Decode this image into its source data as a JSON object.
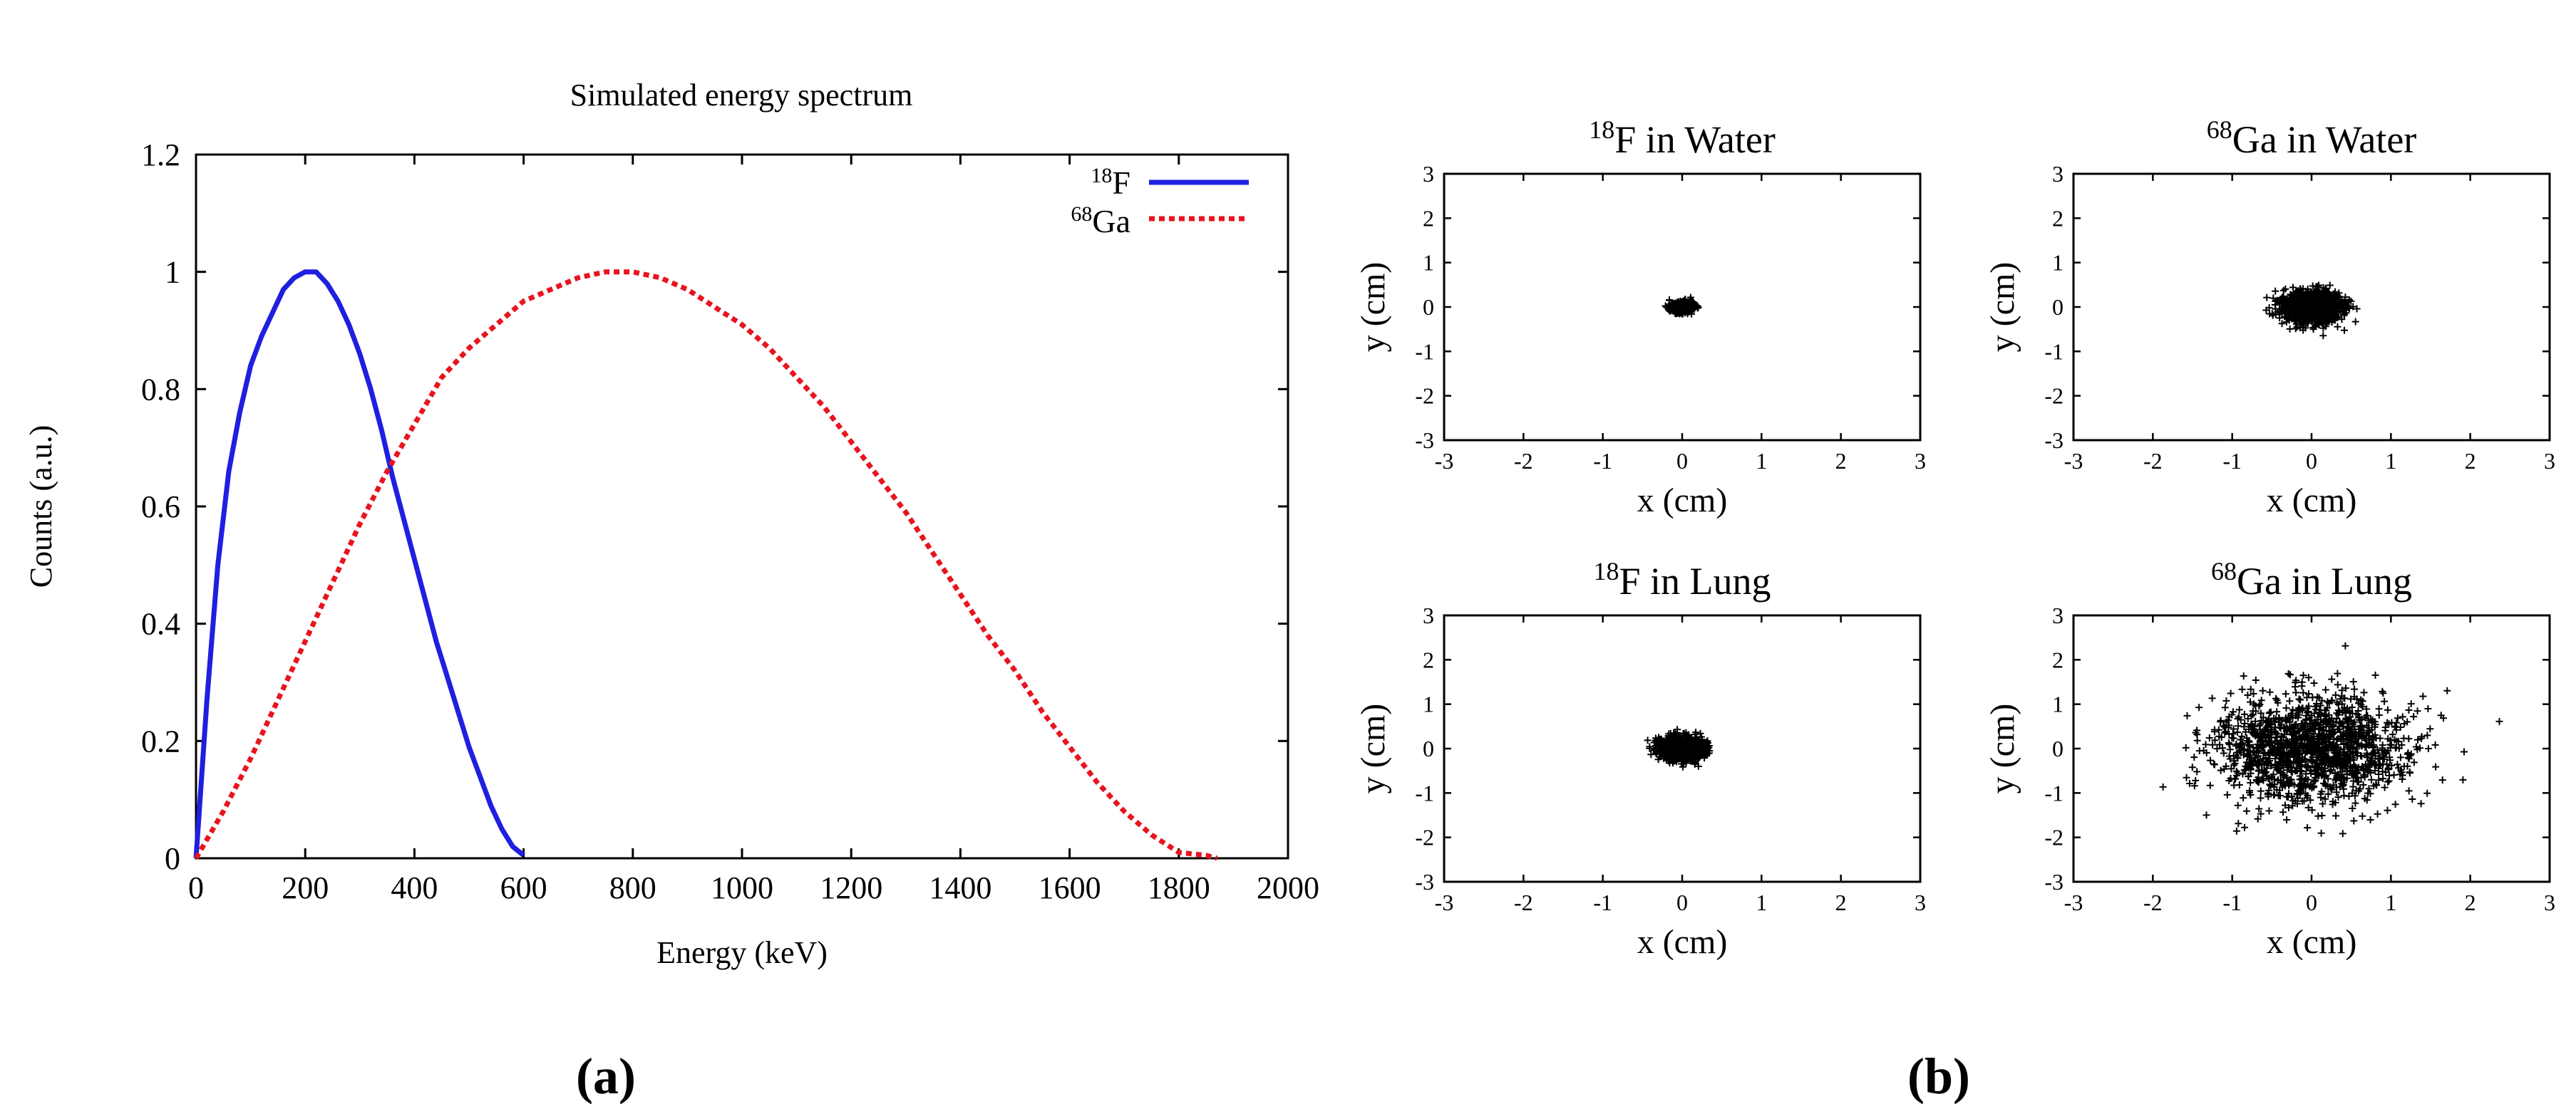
{
  "chart_data": [
    {
      "id": "a",
      "type": "line",
      "panel_label": "(a)",
      "title": "Simulated energy spectrum",
      "xlabel": "Energy (keV)",
      "ylabel": "Counts (a.u.)",
      "xlim": [
        0,
        2000
      ],
      "ylim": [
        0,
        1.2
      ],
      "xticks": [
        "0",
        "200",
        "400",
        "600",
        "800",
        "1000",
        "1200",
        "1400",
        "1600",
        "1800",
        "2000"
      ],
      "yticks": [
        "0",
        "0.2",
        "0.4",
        "0.6",
        "0.8",
        "1",
        "1.2"
      ],
      "legend_position": "top-right",
      "series": [
        {
          "name_mass": "18",
          "name_element": "F",
          "color": "#1f1fe0",
          "style": "solid",
          "x": [
            0,
            20,
            40,
            60,
            80,
            100,
            120,
            140,
            160,
            180,
            200,
            220,
            240,
            260,
            280,
            300,
            320,
            340,
            360,
            380,
            400,
            420,
            440,
            460,
            480,
            500,
            520,
            540,
            560,
            580,
            600
          ],
          "y": [
            0,
            0.27,
            0.5,
            0.66,
            0.76,
            0.84,
            0.89,
            0.93,
            0.97,
            0.99,
            1.0,
            1.0,
            0.98,
            0.95,
            0.91,
            0.86,
            0.8,
            0.73,
            0.65,
            0.58,
            0.51,
            0.44,
            0.37,
            0.31,
            0.25,
            0.19,
            0.14,
            0.09,
            0.05,
            0.02,
            0.005
          ]
        },
        {
          "name_mass": "68",
          "name_element": "Ga",
          "color": "#e8141e",
          "style": "dotted",
          "x": [
            0,
            50,
            100,
            150,
            200,
            250,
            300,
            350,
            400,
            450,
            500,
            550,
            600,
            650,
            700,
            750,
            800,
            850,
            900,
            950,
            1000,
            1050,
            1100,
            1150,
            1200,
            1250,
            1300,
            1350,
            1400,
            1450,
            1500,
            1550,
            1600,
            1650,
            1700,
            1750,
            1800,
            1850,
            1870
          ],
          "y": [
            0,
            0.08,
            0.17,
            0.27,
            0.37,
            0.47,
            0.57,
            0.66,
            0.74,
            0.82,
            0.87,
            0.91,
            0.95,
            0.97,
            0.99,
            1.0,
            1.0,
            0.99,
            0.97,
            0.94,
            0.91,
            0.87,
            0.82,
            0.77,
            0.71,
            0.65,
            0.59,
            0.52,
            0.45,
            0.38,
            0.32,
            0.25,
            0.19,
            0.13,
            0.08,
            0.04,
            0.01,
            0.005,
            0
          ]
        }
      ]
    },
    {
      "id": "b",
      "type": "scatter",
      "panel_label": "(b)",
      "panels": [
        {
          "title_mass": "18",
          "title_rest": "F in Water",
          "xlabel": "x (cm)",
          "ylabel": "y (cm)",
          "xlim": [
            -3,
            3
          ],
          "ylim": [
            -3,
            3
          ],
          "spread_x": 0.07,
          "spread_y": 0.06,
          "point_count": 700,
          "marker": "+",
          "seed": 11
        },
        {
          "title_mass": "68",
          "title_rest": "Ga in Water",
          "xlabel": "x (cm)",
          "ylabel": "y (cm)",
          "xlim": [
            -3,
            3
          ],
          "ylim": [
            -3,
            3
          ],
          "spread_x": 0.18,
          "spread_y": 0.17,
          "point_count": 1400,
          "marker": "+",
          "seed": 23
        },
        {
          "title_mass": "18",
          "title_rest": "F in Lung",
          "xlabel": "x (cm)",
          "ylabel": "y (cm)",
          "xlim": [
            -3,
            3
          ],
          "ylim": [
            -3,
            3
          ],
          "spread_x": 0.14,
          "spread_y": 0.13,
          "point_count": 1200,
          "marker": "+",
          "seed": 37
        },
        {
          "title_mass": "68",
          "title_rest": "Ga in Lung",
          "xlabel": "x (cm)",
          "ylabel": "y (cm)",
          "xlim": [
            -3,
            3
          ],
          "ylim": [
            -3,
            3
          ],
          "spread_x": 0.62,
          "spread_y": 0.62,
          "point_count": 1500,
          "marker": "+",
          "seed": 51
        }
      ],
      "ticks": [
        "-3",
        "-2",
        "-1",
        "0",
        "1",
        "2",
        "3"
      ]
    }
  ]
}
